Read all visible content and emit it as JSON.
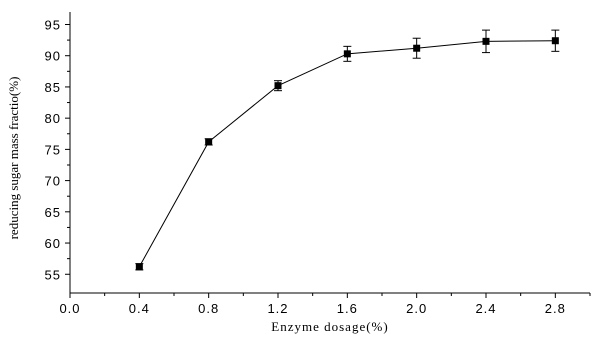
{
  "chart_data": {
    "type": "line",
    "title": "",
    "xlabel": "Enzyme dosage(%)",
    "ylabel": "reducing sugar mass fractio(%)",
    "xlim": [
      0.0,
      3.0
    ],
    "ylim": [
      52,
      97
    ],
    "x_ticks": [
      "0.0",
      "0.4",
      "0.8",
      "1.2",
      "1.6",
      "2.0",
      "2.4",
      "2.8"
    ],
    "y_ticks": [
      "55",
      "60",
      "65",
      "70",
      "75",
      "80",
      "85",
      "90",
      "95"
    ],
    "series": [
      {
        "marker": "square",
        "color": "#000000",
        "x": [
          0.4,
          0.8,
          1.2,
          1.6,
          2.0,
          2.4,
          2.8
        ],
        "y": [
          56.2,
          76.2,
          85.2,
          90.3,
          91.2,
          92.3,
          92.4
        ],
        "error": [
          0.5,
          0.5,
          0.8,
          1.2,
          1.6,
          1.8,
          1.7
        ]
      }
    ],
    "grid": false,
    "legend": "none"
  }
}
